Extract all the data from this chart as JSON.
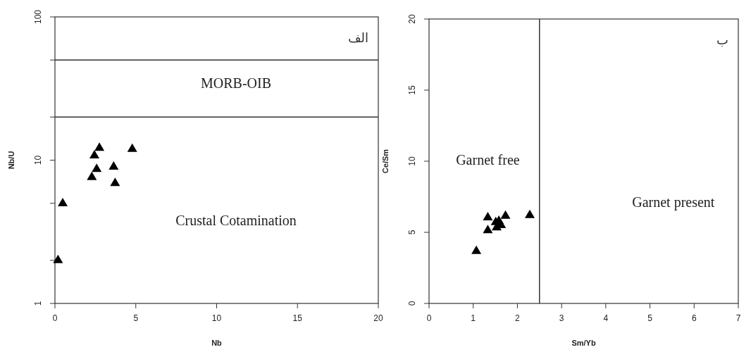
{
  "chart_data": [
    {
      "type": "scatter",
      "title": "الف",
      "xlabel": "Nb",
      "ylabel": "Nb/U",
      "log": "y",
      "marker": "triangle",
      "xlim": [
        0,
        20
      ],
      "xticks": [
        0,
        5,
        10,
        15,
        20
      ],
      "ylim": [
        1,
        100
      ],
      "yticks": [
        1,
        {
          "value": 2,
          "label": null
        },
        {
          "value": 5,
          "label": null
        },
        10,
        {
          "value": 20,
          "label": null
        },
        {
          "value": 50,
          "label": null
        },
        100
      ],
      "series": [
        {
          "color": "#000000",
          "x": [
            2.75,
            2.44,
            4.78,
            2.58,
            3.63,
            2.28,
            3.72,
            0.48,
            0.19
          ],
          "values": [
            12.3,
            10.9,
            12.1,
            8.75,
            9.08,
            7.69,
            6.98,
            5.04,
            2.02
          ]
        }
      ],
      "ref_lines": [
        {
          "axis": "y",
          "value": 20
        },
        {
          "axis": "y",
          "value": 50
        }
      ],
      "annotations": [
        "MORB-OIB",
        "Crustal Cotamination"
      ]
    },
    {
      "type": "scatter",
      "title": "ب",
      "xlabel": "Sm/Yb",
      "ylabel": "Ce/Sm",
      "marker": "triangle",
      "xlim": [
        0,
        7
      ],
      "xticks": [
        0,
        1,
        2,
        3,
        4,
        5,
        6,
        7
      ],
      "ylim": [
        0,
        20
      ],
      "yticks": [
        0,
        5,
        10,
        15,
        20
      ],
      "series": [
        {
          "color": "#000000",
          "x": [
            1.07,
            1.33,
            1.33,
            1.73,
            2.28,
            1.51,
            1.58,
            1.63,
            1.53
          ],
          "values": [
            3.73,
            6.09,
            5.18,
            6.2,
            6.25,
            5.76,
            5.84,
            5.54,
            5.38
          ]
        }
      ],
      "ref_lines": [
        {
          "axis": "x",
          "value": 2.5
        }
      ],
      "annotations": [
        "Garnet free",
        "Garnet present"
      ]
    }
  ]
}
